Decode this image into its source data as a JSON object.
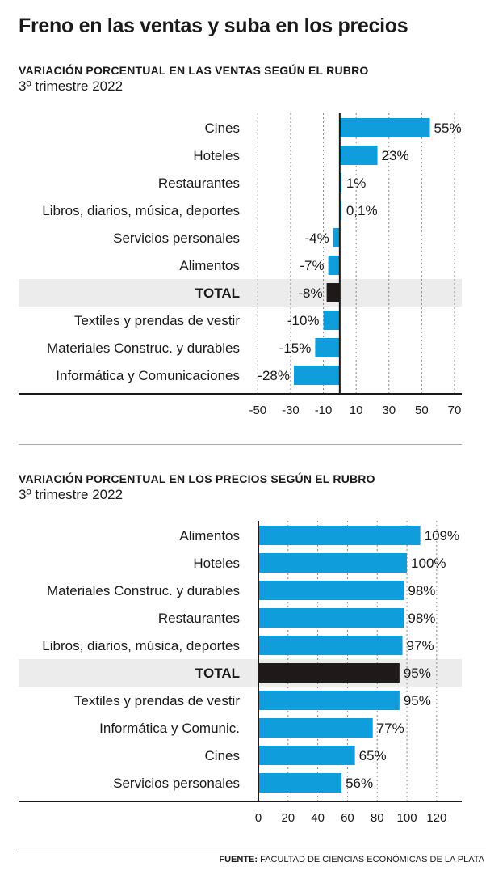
{
  "title": "Freno en las ventas y suba en los precios",
  "source": {
    "label": "FUENTE:",
    "text": "FACULTAD DE CIENCIAS ECONÓMICAS DE LA PLATA"
  },
  "colors": {
    "bar": "#0f9ddc",
    "total_bar": "#1d1a19",
    "highlight": "#ececec",
    "grid": "#8a8a8a",
    "text": "#1a1a1a"
  },
  "chart_data": [
    {
      "type": "bar",
      "orientation": "horizontal",
      "title": "VARIACIÓN PORCENTUAL EN LAS VENTAS SEGÚN EL RUBRO",
      "subtitle": "3º trimestre 2022",
      "categories": [
        "Cines",
        "Hoteles",
        "Restaurantes",
        "Libros, diarios, música, deportes",
        "Servicios personales",
        "Alimentos",
        "TOTAL",
        "Textiles y prendas de vestir",
        "Materiales Construc. y durables",
        "Informática y Comunicaciones"
      ],
      "values": [
        55,
        23,
        1,
        0.1,
        -4,
        -7,
        -8,
        -10,
        -15,
        -28
      ],
      "value_labels": [
        "55%",
        "23%",
        "1%",
        "0,1%",
        "-4%",
        "-7%",
        "-8%",
        "-10%",
        "-15%",
        "-28%"
      ],
      "highlight": "TOTAL",
      "xlim": [
        -60,
        70
      ],
      "xticks": [
        -50,
        -30,
        -10,
        10,
        30,
        50,
        70
      ],
      "xtick_labels": [
        "-50",
        "-30",
        "-10",
        "10",
        "30",
        "50",
        "70"
      ],
      "grid": true
    },
    {
      "type": "bar",
      "orientation": "horizontal",
      "title": "VARIACIÓN PORCENTUAL EN LOS PRECIOS SEGÚN EL RUBRO",
      "subtitle": "3º trimestre 2022",
      "categories": [
        "Alimentos",
        "Hoteles",
        "Materiales Construc. y durables",
        "Restaurantes",
        "Libros, diarios, música, deportes",
        "TOTAL",
        "Textiles y prendas de vestir",
        "Informática y Comunic.",
        "Cines",
        "Servicios personales"
      ],
      "values": [
        109,
        100,
        98,
        98,
        97,
        95,
        95,
        77,
        65,
        56
      ],
      "value_labels": [
        "109%",
        "100%",
        "98%",
        "98%",
        "97%",
        "95%",
        "95%",
        "77%",
        "65%",
        "56%"
      ],
      "highlight": "TOTAL",
      "xlim": [
        0,
        138
      ],
      "xticks": [
        0,
        20,
        40,
        60,
        80,
        100,
        120
      ],
      "xtick_labels": [
        "0",
        "20",
        "40",
        "60",
        "80",
        "100",
        "120"
      ],
      "grid": true
    }
  ]
}
